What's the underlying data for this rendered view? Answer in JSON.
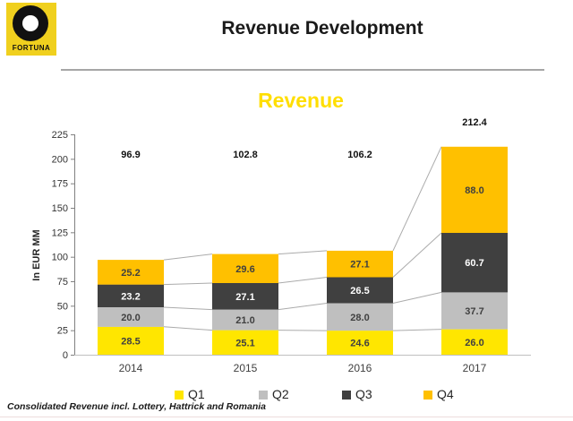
{
  "logo": {
    "brand": "FORTUNA",
    "bg_color": "#F0D01E"
  },
  "header": {
    "title": "Revenue Development"
  },
  "chart_data": {
    "type": "bar",
    "stacked": true,
    "title": "Revenue",
    "ylabel": "In EUR MM",
    "ylim": [
      0,
      225
    ],
    "ytick_step": 25,
    "grid": false,
    "legend_position": "bottom",
    "categories": [
      "2014",
      "2015",
      "2016",
      "2017"
    ],
    "series": [
      {
        "name": "Q1",
        "color": "#FFE600",
        "label_color": "#404040",
        "values": [
          28.5,
          25.1,
          24.6,
          26.0
        ]
      },
      {
        "name": "Q2",
        "color": "#BFBFBF",
        "label_color": "#404040",
        "values": [
          20.0,
          21.0,
          28.0,
          37.7
        ]
      },
      {
        "name": "Q3",
        "color": "#404040",
        "label_color": "#FFFFFF",
        "values": [
          23.2,
          27.1,
          26.5,
          60.7
        ]
      },
      {
        "name": "Q4",
        "color": "#FFC000",
        "label_color": "#404040",
        "values": [
          25.2,
          29.6,
          27.1,
          88.0
        ]
      }
    ],
    "totals": [
      96.9,
      102.8,
      106.2,
      212.4
    ],
    "colors": {
      "axis": "#808080",
      "baseline": "#BFBFBF",
      "connector": "#ABABAB",
      "separator": "#A6A6A6"
    }
  },
  "footer": {
    "note": "Consolidated Revenue incl. Lottery, Hattrick and Romania"
  }
}
